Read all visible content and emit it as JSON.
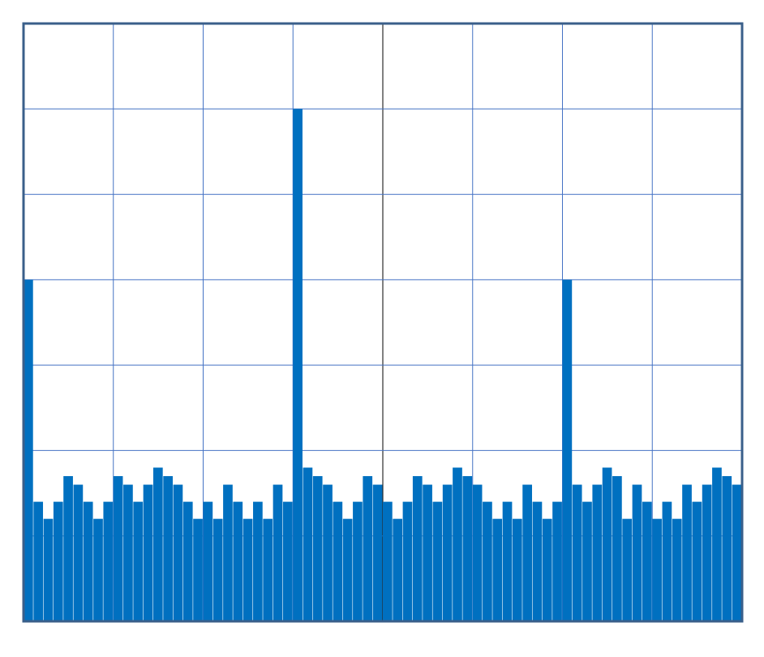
{
  "chart_data": {
    "type": "bar",
    "title": "",
    "xlabel": "",
    "ylabel": "",
    "grid": true,
    "xlim": [
      0,
      72
    ],
    "ylim": [
      0,
      7
    ],
    "x_divisions": 8,
    "y_divisions": 7,
    "series": [
      {
        "values": [
          4.0,
          1.4,
          1.2,
          1.4,
          1.7,
          1.6,
          1.4,
          1.2,
          1.4,
          1.7,
          1.6,
          1.4,
          1.6,
          1.8,
          1.7,
          1.6,
          1.4,
          1.2,
          1.4,
          1.2,
          1.6,
          1.4,
          1.2,
          1.4,
          1.2,
          1.6,
          1.4,
          6.0,
          1.8,
          1.7,
          1.6,
          1.4,
          1.2,
          1.4,
          1.7,
          1.6,
          1.4,
          1.2,
          1.4,
          1.7,
          1.6,
          1.4,
          1.6,
          1.8,
          1.7,
          1.6,
          1.4,
          1.2,
          1.4,
          1.2,
          1.6,
          1.4,
          1.2,
          1.4,
          4.0,
          1.6,
          1.4,
          1.6,
          1.8,
          1.7,
          1.2,
          1.6,
          1.4,
          1.2,
          1.4,
          1.2,
          1.6,
          1.4,
          1.6,
          1.8,
          1.7,
          1.6
        ]
      }
    ]
  },
  "colors": {
    "bar": "#0070c0",
    "grid": "#4472c4",
    "center_line": "#000000",
    "frame": "#3a5f8a",
    "background": "#ffffff"
  }
}
